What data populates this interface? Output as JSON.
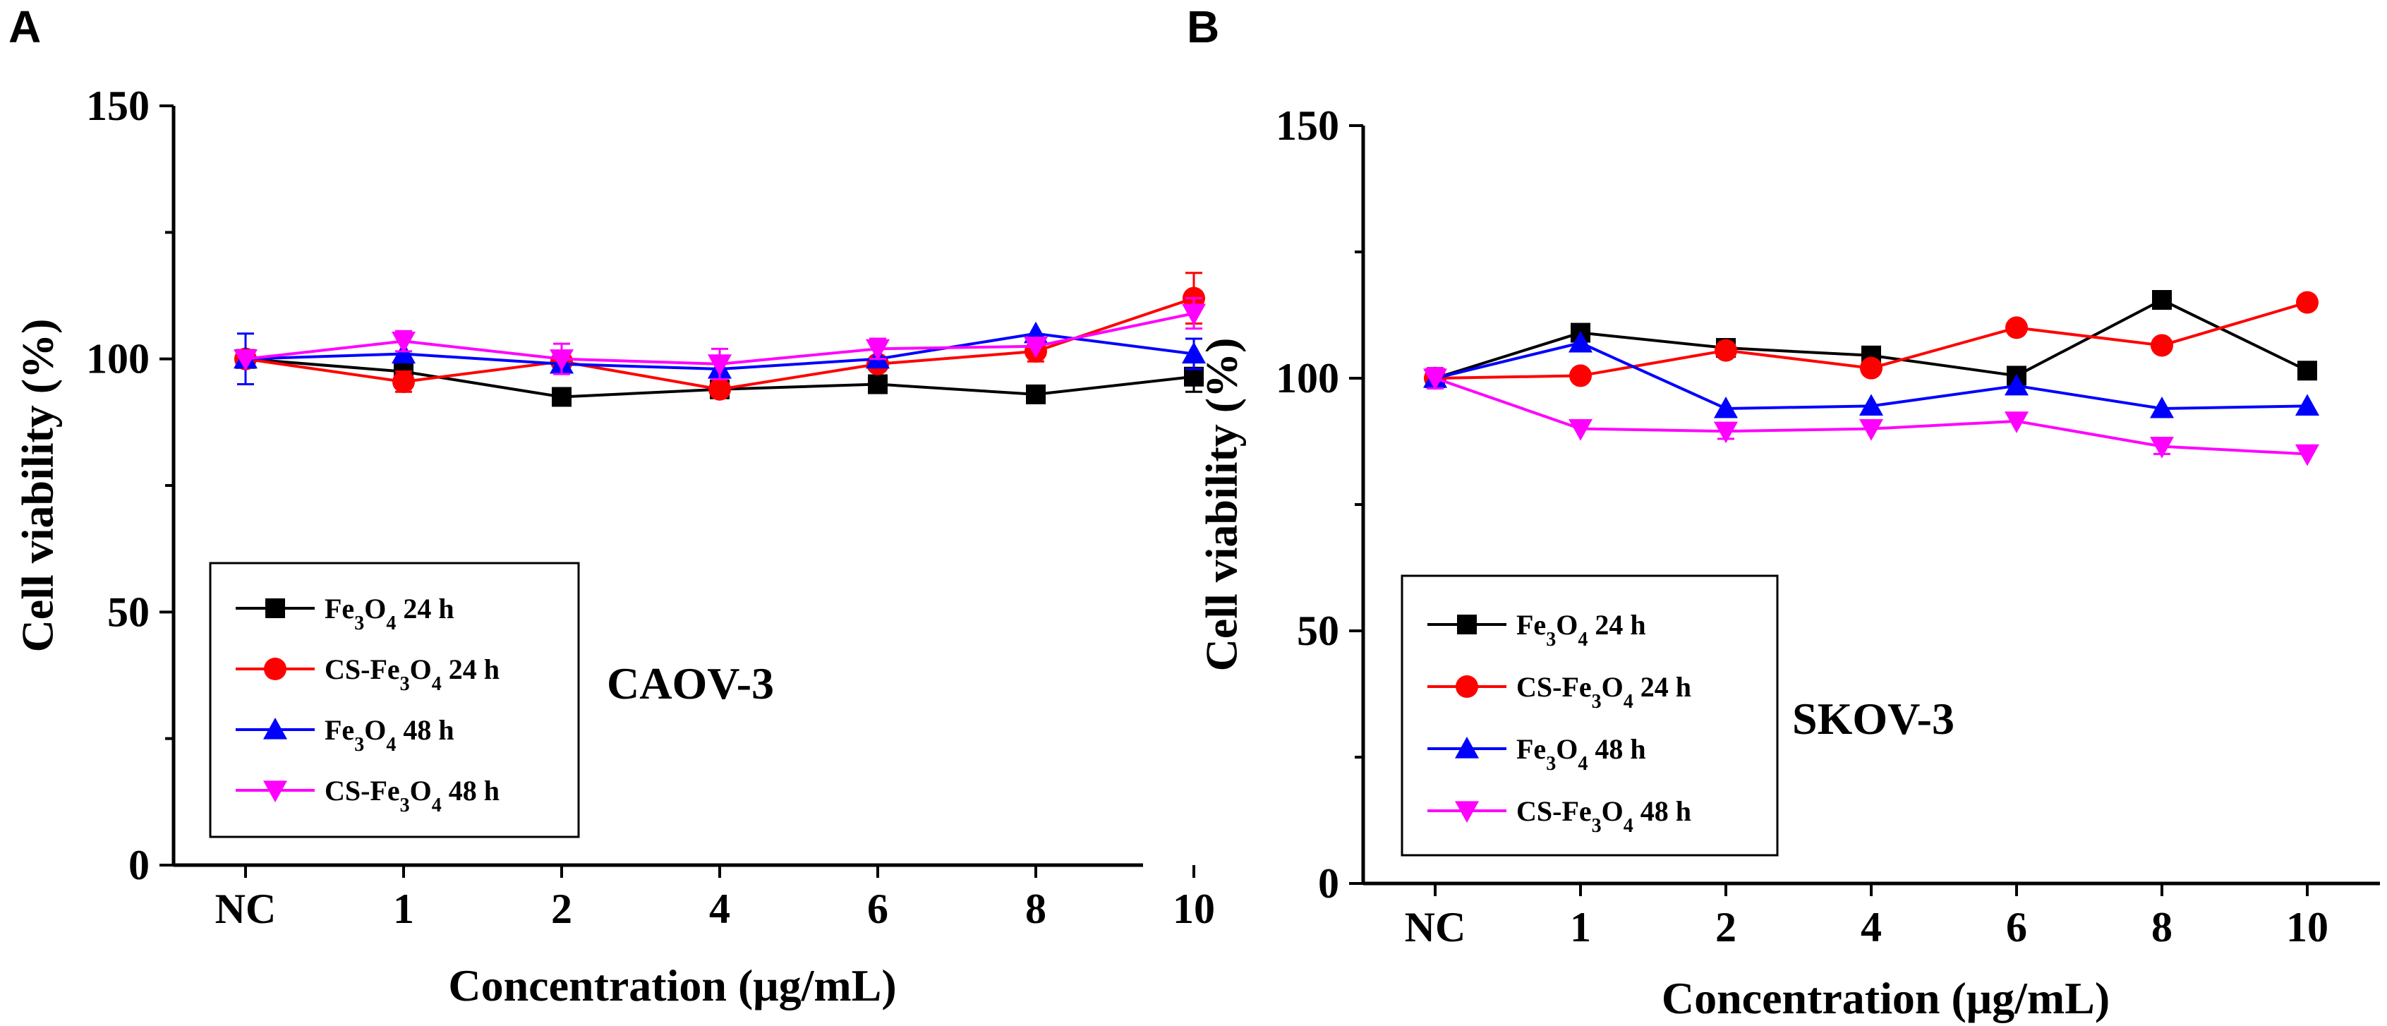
{
  "chart_data": [
    {
      "type": "line",
      "panel": "A",
      "cell_line": "CAOV-3",
      "categories": [
        "NC",
        "1",
        "2",
        "4",
        "6",
        "8",
        "10"
      ],
      "xlabel": "Concentration (μg/mL)",
      "ylabel": "Cell viability (%)",
      "ylim": [
        0,
        150
      ],
      "yticks": [
        "0",
        "50",
        "100",
        "150"
      ],
      "grid": false,
      "legend_position": "bottom-left",
      "series": [
        {
          "name": "Fe3O4 24 h",
          "base": "Fe",
          "sub1": "3",
          "mid": "O",
          "sub2": "4",
          "tail": " 24 h",
          "color": "#000000",
          "marker": "square",
          "values": [
            100,
            97.5,
            92.5,
            94,
            95,
            93,
            96.5
          ],
          "errors": [
            0,
            0,
            0,
            0,
            0,
            0,
            3
          ]
        },
        {
          "name": "CS-Fe3O4 24 h",
          "base": "CS-Fe",
          "sub1": "3",
          "mid": "O",
          "sub2": "4",
          "tail": " 24 h",
          "color": "#ff0000",
          "marker": "circle",
          "values": [
            100,
            95.5,
            99.5,
            94,
            99,
            101.5,
            112
          ],
          "errors": [
            0,
            2,
            0,
            0,
            0,
            2,
            5
          ]
        },
        {
          "name": "Fe3O4 48 h",
          "base": "Fe",
          "sub1": "3",
          "mid": "O",
          "sub2": "4",
          "tail": " 48 h",
          "color": "#0000ff",
          "marker": "triangle-up",
          "values": [
            100,
            101,
            99,
            98,
            100,
            105,
            101
          ],
          "errors": [
            5,
            0,
            0,
            0,
            0,
            0,
            3
          ]
        },
        {
          "name": "CS-Fe3O4 48 h",
          "base": "CS-Fe",
          "sub1": "3",
          "mid": "O",
          "sub2": "4",
          "tail": " 48 h",
          "color": "#ff00ff",
          "marker": "triangle-down",
          "values": [
            100,
            103.5,
            100,
            99,
            102,
            102.5,
            109
          ],
          "errors": [
            0,
            2,
            3,
            3,
            2,
            0,
            3
          ]
        }
      ]
    },
    {
      "type": "line",
      "panel": "B",
      "cell_line": "SKOV-3",
      "categories": [
        "NC",
        "1",
        "2",
        "4",
        "6",
        "8",
        "10"
      ],
      "xlabel": "Concentration (μg/mL)",
      "ylabel": "Cell viability (%)",
      "ylim": [
        0,
        150
      ],
      "yticks": [
        "0",
        "50",
        "100",
        "150"
      ],
      "grid": false,
      "legend_position": "bottom-left",
      "series": [
        {
          "name": "Fe3O4 24 h",
          "base": "Fe",
          "sub1": "3",
          "mid": "O",
          "sub2": "4",
          "tail": " 24 h",
          "color": "#000000",
          "marker": "square",
          "values": [
            100,
            109,
            106,
            104.5,
            100.5,
            115.5,
            101.5
          ],
          "errors": [
            0,
            0,
            0,
            0,
            0,
            0,
            0
          ]
        },
        {
          "name": "CS-Fe3O4 24 h",
          "base": "CS-Fe",
          "sub1": "3",
          "mid": "O",
          "sub2": "4",
          "tail": " 24 h",
          "color": "#ff0000",
          "marker": "circle",
          "values": [
            100,
            100.5,
            105.5,
            102,
            110,
            106.5,
            115
          ],
          "errors": [
            0,
            0,
            0,
            0,
            0,
            0,
            0
          ]
        },
        {
          "name": "Fe3O4 48 h",
          "base": "Fe",
          "sub1": "3",
          "mid": "O",
          "sub2": "4",
          "tail": " 48 h",
          "color": "#0000ff",
          "marker": "triangle-up",
          "values": [
            100,
            107,
            94,
            94.5,
            98.5,
            94,
            94.5
          ],
          "errors": [
            2,
            0,
            0,
            0,
            0,
            0,
            0
          ]
        },
        {
          "name": "CS-Fe3O4 48 h",
          "base": "CS-Fe",
          "sub1": "3",
          "mid": "O",
          "sub2": "4",
          "tail": " 48 h",
          "color": "#ff00ff",
          "marker": "triangle-down",
          "values": [
            100,
            90,
            89.5,
            90,
            91.5,
            86.5,
            85
          ],
          "errors": [
            2,
            0,
            1.5,
            0,
            0,
            1.5,
            0
          ]
        }
      ]
    }
  ]
}
